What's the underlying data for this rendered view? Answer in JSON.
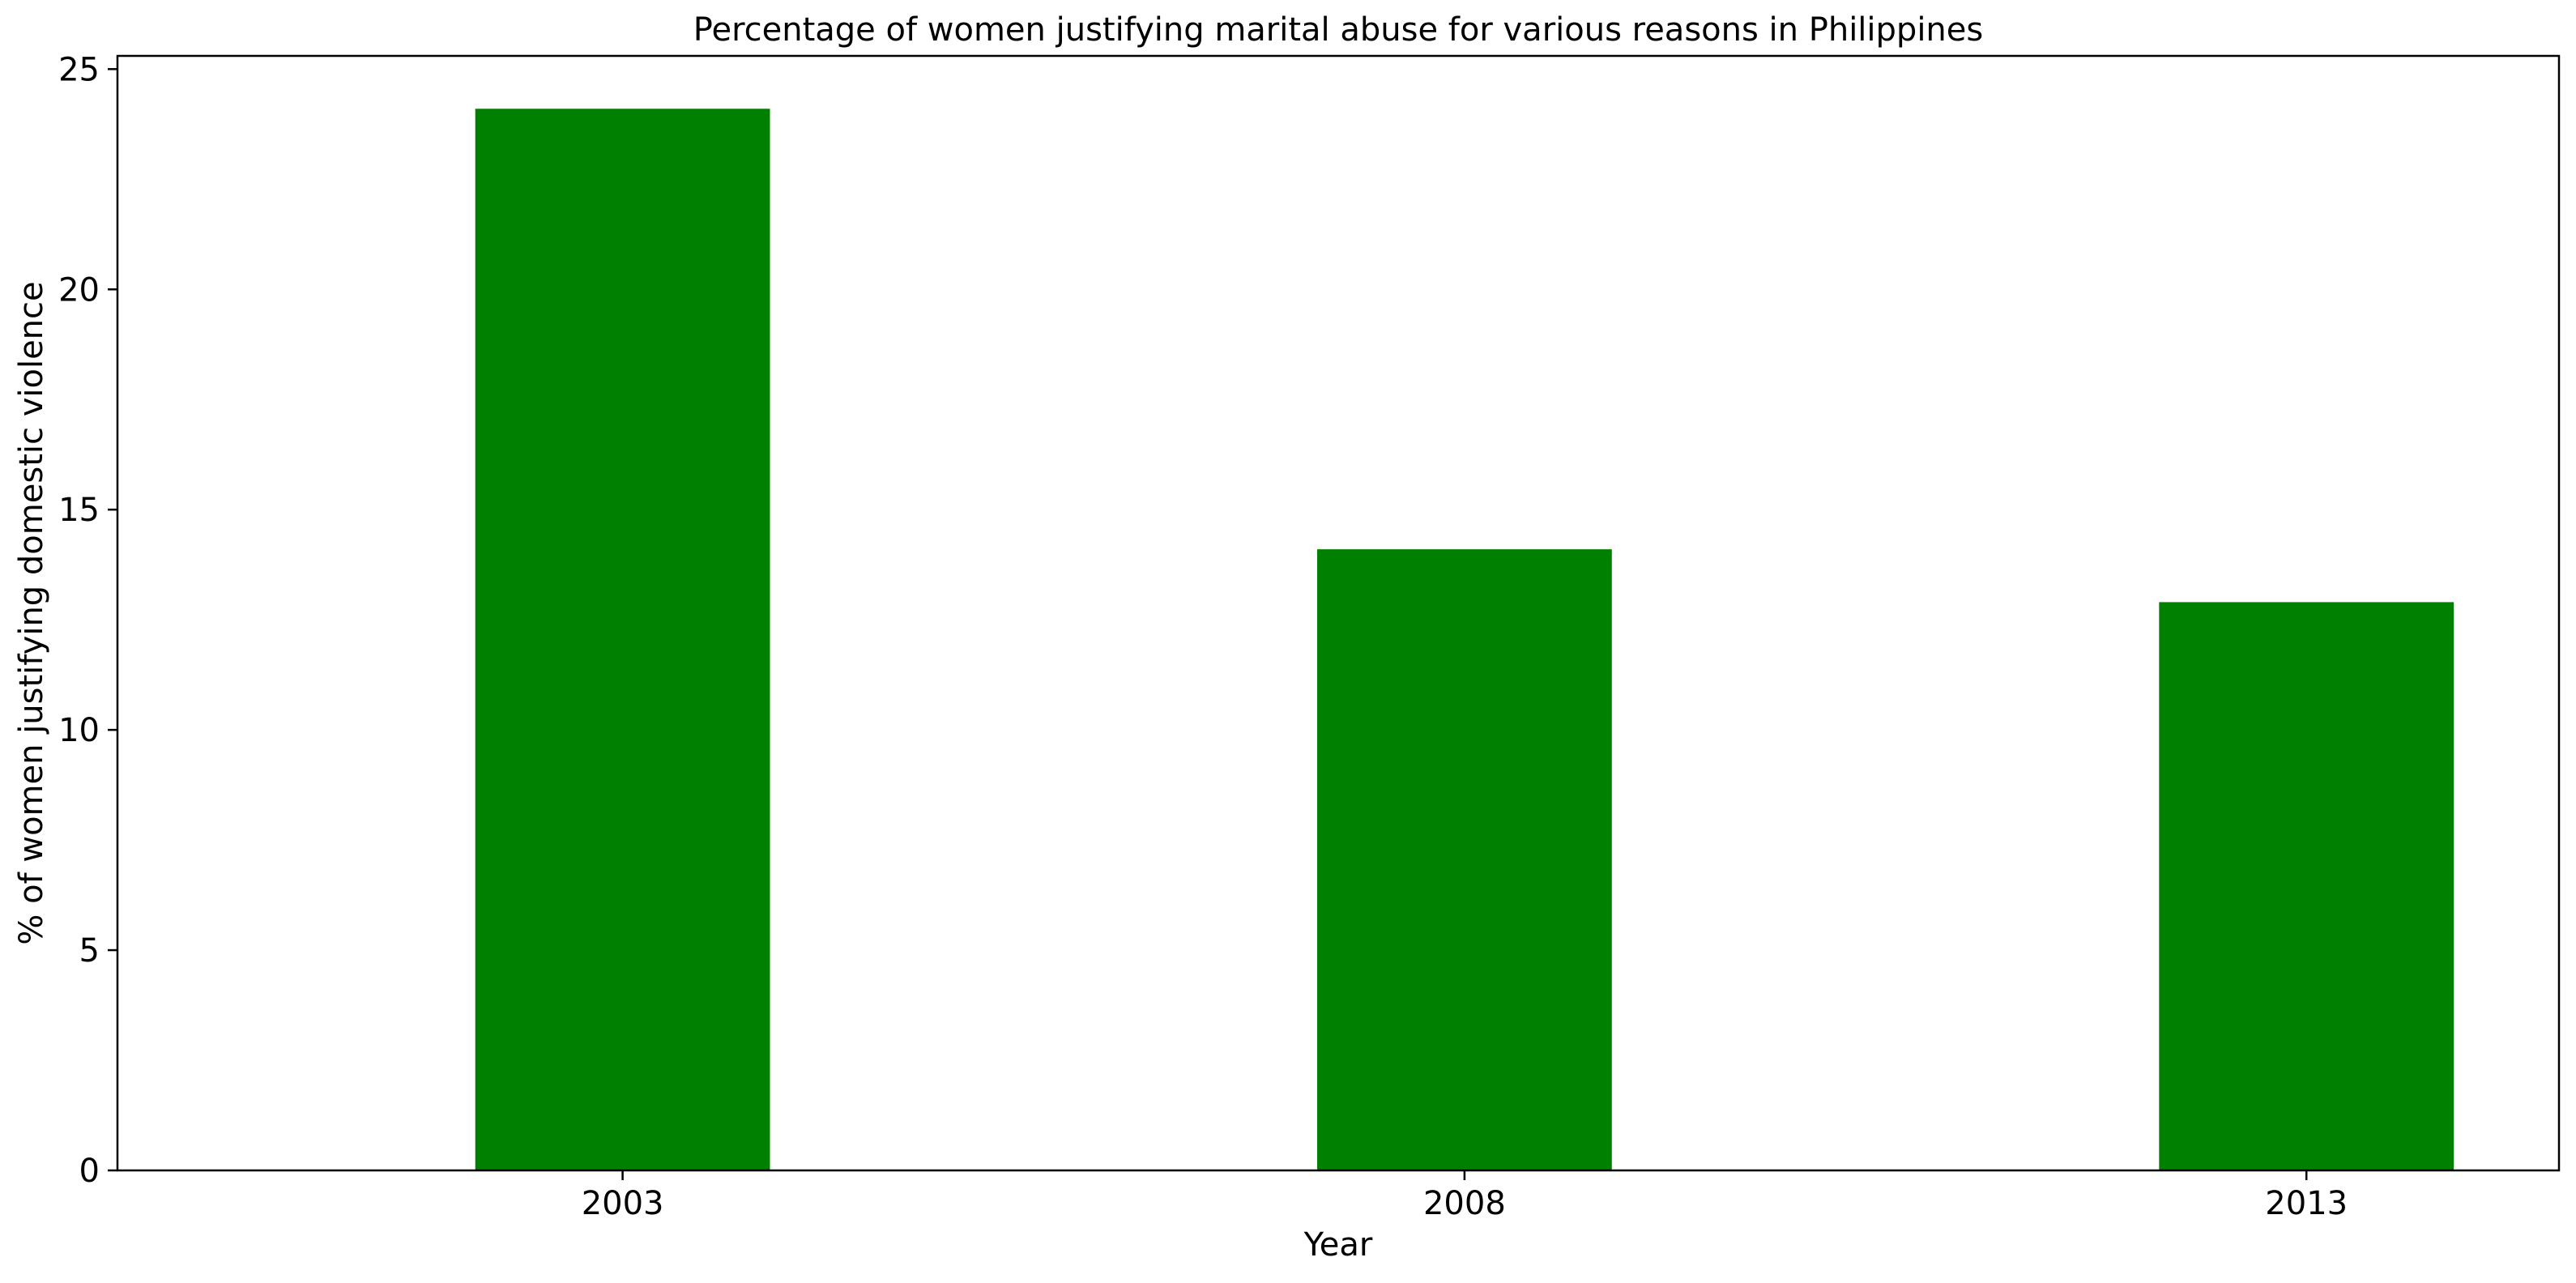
{
  "chart_data": {
    "type": "bar",
    "title": "Percentage of women justifying marital abuse for various reasons in Philippines",
    "xlabel": "Year",
    "ylabel": "% of women justifying domestic violence",
    "categories": [
      "2003",
      "2008",
      "2013"
    ],
    "values": [
      24.1,
      14.1,
      12.9
    ],
    "ylim": [
      0,
      25.3
    ],
    "yticks": [
      "0",
      "5",
      "10",
      "15",
      "20",
      "25"
    ],
    "bar_color": "#008000",
    "grid": false,
    "legend": "none"
  }
}
